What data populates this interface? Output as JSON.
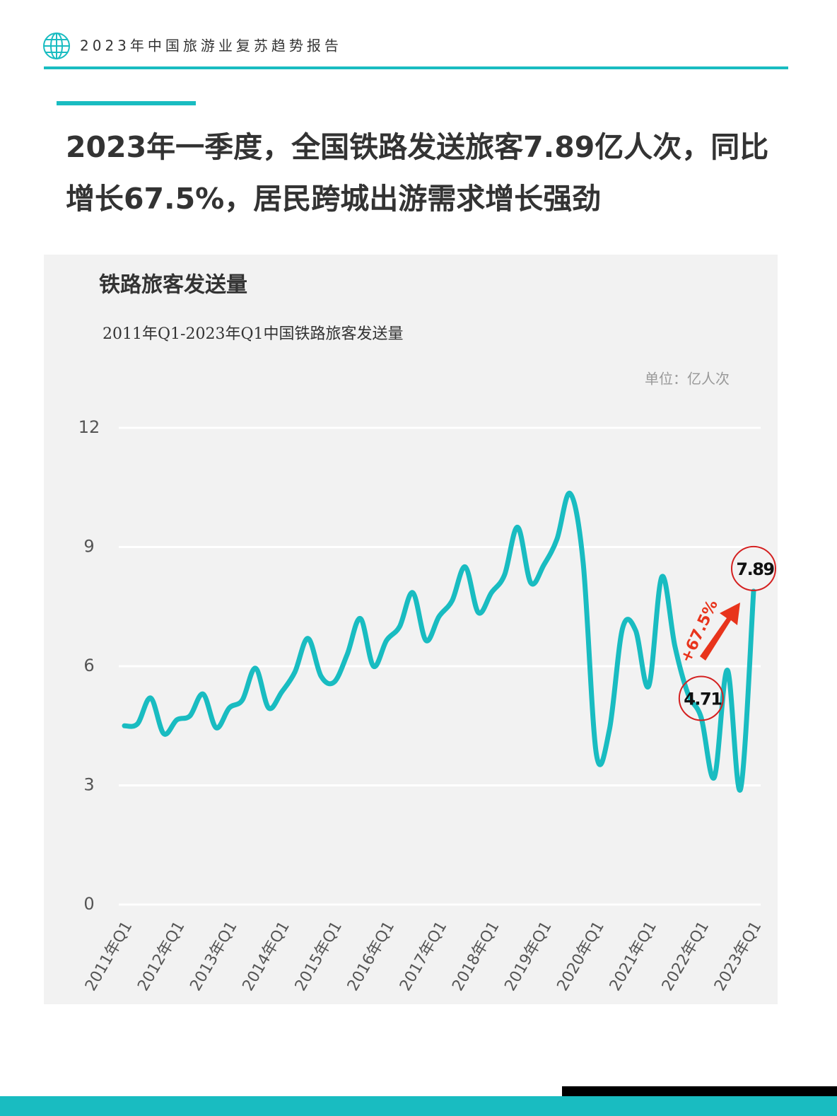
{
  "header": {
    "title": "2023年中国旅游业复苏趋势报告"
  },
  "headline": {
    "lines": [
      "2023年一季度，全国铁路发送旅客7.89亿人次，同比",
      "增长67.5%，居民跨城出游需求增长强劲"
    ]
  },
  "chart_data": {
    "type": "line",
    "title": "铁路旅客发送量",
    "subtitle": "2011年Q1-2023年Q1中国铁路旅客发送量",
    "unit": "单位：亿人次",
    "annotation": "+67.5%",
    "categories": [
      "2011年Q1",
      null,
      null,
      null,
      "2012年Q1",
      null,
      null,
      null,
      "2013年Q1",
      null,
      null,
      null,
      "2014年Q1",
      null,
      null,
      null,
      "2015年Q1",
      null,
      null,
      null,
      "2016年Q1",
      null,
      null,
      null,
      "2017年Q1",
      null,
      null,
      null,
      "2018年Q1",
      null,
      null,
      null,
      "2019年Q1",
      null,
      null,
      null,
      "2020年Q1",
      null,
      null,
      null,
      "2021年Q1",
      null,
      null,
      null,
      "2022年Q1",
      null,
      null,
      null,
      "2023年Q1"
    ],
    "values": [
      4.5,
      4.55,
      5.2,
      4.3,
      4.65,
      4.75,
      5.3,
      4.45,
      4.95,
      5.15,
      5.95,
      4.95,
      5.35,
      5.85,
      6.7,
      5.75,
      5.6,
      6.3,
      7.2,
      6.0,
      6.65,
      7.0,
      7.85,
      6.65,
      7.25,
      7.65,
      8.5,
      7.35,
      7.85,
      8.3,
      9.5,
      8.1,
      8.55,
      9.2,
      10.35,
      8.6,
      3.8,
      4.4,
      6.95,
      6.9,
      5.5,
      8.25,
      6.5,
      5.3,
      4.71,
      3.2,
      5.9,
      2.9,
      7.89
    ],
    "color": "#19bcc1",
    "ylim": [
      0,
      12
    ],
    "yticks": [
      0,
      3,
      6,
      9,
      12
    ],
    "grid": true,
    "labeled_points": [
      44,
      48
    ]
  }
}
